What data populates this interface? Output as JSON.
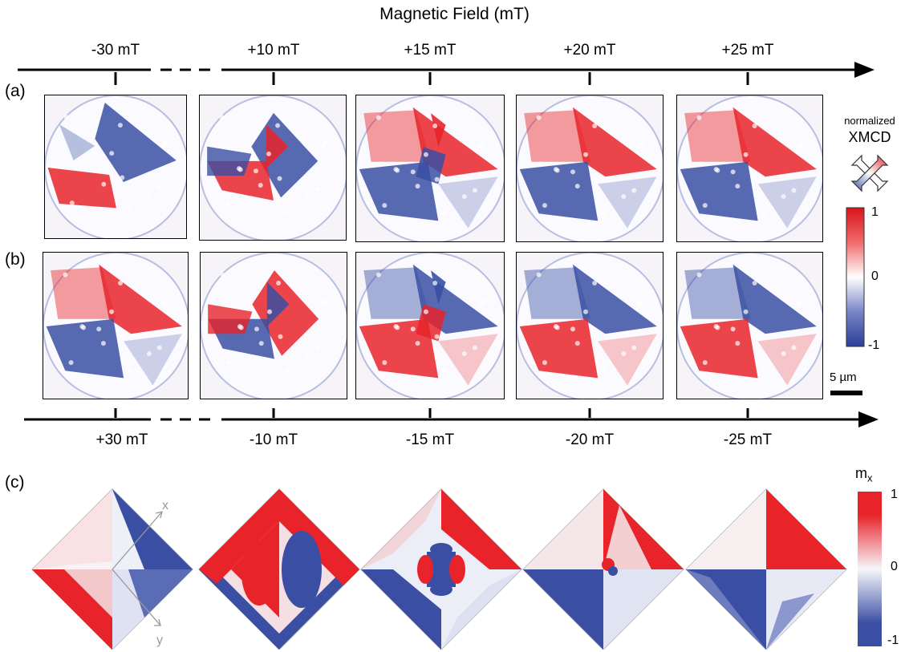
{
  "title": "Magnetic Field (mT)",
  "panels": {
    "a": "(a)",
    "b": "(b)",
    "c": "(c)"
  },
  "top_fields": [
    "-30 mT",
    "+10 mT",
    "+15 mT",
    "+20 mT",
    "+25 mT"
  ],
  "bottom_fields": [
    "+30 mT",
    "-10 mT",
    "-15 mT",
    "-20 mT",
    "-25 mT"
  ],
  "xmcd": {
    "label_line1": "normalized",
    "label_line2": "XMCD",
    "tick_max": "1",
    "tick_mid": "0",
    "tick_min": "-1"
  },
  "scalebar": "5 µm",
  "sim": {
    "label_main": "m",
    "label_sub": "x",
    "tick_max": "1",
    "tick_mid": "0",
    "tick_min": "-1",
    "axis_x": "x",
    "axis_y": "y"
  },
  "colors": {
    "red": "#e8232a",
    "blue": "#3a4fa3",
    "white": "#f7f7fb"
  },
  "row_a_pattern": [
    "blue-top-right",
    "mixed",
    "red-top",
    "red-top",
    "red-top"
  ],
  "row_b_pattern": [
    "red-top",
    "mixed",
    "blue-top",
    "blue-top",
    "blue-top"
  ]
}
